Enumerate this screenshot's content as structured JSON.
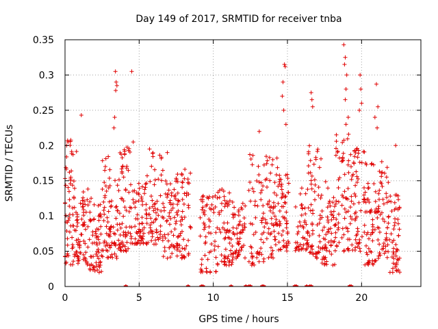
{
  "chart_data": {
    "type": "scatter",
    "title": "Day 149 of 2017, SRMTID for receiver tnba",
    "xlabel": "GPS time / hours",
    "ylabel": "SRMTID / TECUs",
    "xlim": [
      0,
      24
    ],
    "ylim": [
      0,
      0.35
    ],
    "x_ticks": [
      0,
      5,
      10,
      15,
      20
    ],
    "x_tick_labels": [
      "0",
      "5",
      "10",
      "15",
      "20"
    ],
    "y_ticks": [
      0,
      0.05,
      0.1,
      0.15,
      0.2,
      0.25,
      0.3,
      0.35
    ],
    "y_tick_labels": [
      "0",
      "0.05",
      "0.1",
      "0.15",
      "0.2",
      "0.25",
      "0.3",
      "0.35"
    ],
    "grid": true,
    "marker": "+",
    "color": "#e00000",
    "clusters": [
      {
        "x0": 0.0,
        "x1": 0.8,
        "lo": 0.03,
        "hi": 0.21,
        "n": 70
      },
      {
        "x0": 0.8,
        "x1": 1.6,
        "lo": 0.03,
        "hi": 0.14,
        "n": 60
      },
      {
        "x0": 1.6,
        "x1": 2.5,
        "lo": 0.02,
        "hi": 0.13,
        "n": 65
      },
      {
        "x0": 2.5,
        "x1": 3.5,
        "lo": 0.04,
        "hi": 0.19,
        "n": 70
      },
      {
        "x0": 3.5,
        "x1": 4.4,
        "lo": 0.05,
        "hi": 0.2,
        "n": 70
      },
      {
        "x0": 4.4,
        "x1": 5.5,
        "lo": 0.06,
        "hi": 0.15,
        "n": 70
      },
      {
        "x0": 5.5,
        "x1": 6.6,
        "lo": 0.06,
        "hi": 0.19,
        "n": 65
      },
      {
        "x0": 6.6,
        "x1": 7.6,
        "lo": 0.04,
        "hi": 0.16,
        "n": 65
      },
      {
        "x0": 7.6,
        "x1": 8.5,
        "lo": 0.04,
        "hi": 0.17,
        "n": 55
      },
      {
        "x0": 9.1,
        "x1": 10.2,
        "lo": 0.02,
        "hi": 0.13,
        "n": 60
      },
      {
        "x0": 10.2,
        "x1": 11.3,
        "lo": 0.03,
        "hi": 0.14,
        "n": 65
      },
      {
        "x0": 11.3,
        "x1": 12.2,
        "lo": 0.04,
        "hi": 0.12,
        "n": 55
      },
      {
        "x0": 12.4,
        "x1": 13.5,
        "lo": 0.03,
        "hi": 0.2,
        "n": 60
      },
      {
        "x0": 13.5,
        "x1": 14.4,
        "lo": 0.04,
        "hi": 0.2,
        "n": 60
      },
      {
        "x0": 14.4,
        "x1": 15.1,
        "lo": 0.05,
        "hi": 0.16,
        "n": 55
      },
      {
        "x0": 15.5,
        "x1": 16.4,
        "lo": 0.05,
        "hi": 0.14,
        "n": 50
      },
      {
        "x0": 16.4,
        "x1": 17.3,
        "lo": 0.04,
        "hi": 0.2,
        "n": 60
      },
      {
        "x0": 17.3,
        "x1": 18.2,
        "lo": 0.03,
        "hi": 0.15,
        "n": 60
      },
      {
        "x0": 18.2,
        "x1": 19.2,
        "lo": 0.05,
        "hi": 0.22,
        "n": 65
      },
      {
        "x0": 19.2,
        "x1": 20.2,
        "lo": 0.05,
        "hi": 0.2,
        "n": 65
      },
      {
        "x0": 20.2,
        "x1": 21.0,
        "lo": 0.03,
        "hi": 0.18,
        "n": 60
      },
      {
        "x0": 21.0,
        "x1": 21.8,
        "lo": 0.04,
        "hi": 0.18,
        "n": 55
      },
      {
        "x0": 21.8,
        "x1": 22.6,
        "lo": 0.02,
        "hi": 0.13,
        "n": 55
      }
    ],
    "outliers": [
      {
        "x": 0.2,
        "y": 0.205
      },
      {
        "x": 1.1,
        "y": 0.243
      },
      {
        "x": 3.4,
        "y": 0.305
      },
      {
        "x": 3.45,
        "y": 0.29
      },
      {
        "x": 3.5,
        "y": 0.285
      },
      {
        "x": 3.42,
        "y": 0.278
      },
      {
        "x": 3.35,
        "y": 0.24
      },
      {
        "x": 3.3,
        "y": 0.225
      },
      {
        "x": 4.5,
        "y": 0.305
      },
      {
        "x": 4.6,
        "y": 0.205
      },
      {
        "x": 5.7,
        "y": 0.195
      },
      {
        "x": 6.9,
        "y": 0.19
      },
      {
        "x": 13.1,
        "y": 0.22
      },
      {
        "x": 14.8,
        "y": 0.315
      },
      {
        "x": 14.85,
        "y": 0.312
      },
      {
        "x": 14.7,
        "y": 0.29
      },
      {
        "x": 14.65,
        "y": 0.27
      },
      {
        "x": 14.75,
        "y": 0.25
      },
      {
        "x": 14.9,
        "y": 0.23
      },
      {
        "x": 16.6,
        "y": 0.275
      },
      {
        "x": 16.65,
        "y": 0.265
      },
      {
        "x": 16.7,
        "y": 0.255
      },
      {
        "x": 18.8,
        "y": 0.343
      },
      {
        "x": 18.9,
        "y": 0.325
      },
      {
        "x": 18.85,
        "y": 0.315
      },
      {
        "x": 19.0,
        "y": 0.3
      },
      {
        "x": 18.95,
        "y": 0.28
      },
      {
        "x": 18.9,
        "y": 0.265
      },
      {
        "x": 19.1,
        "y": 0.24
      },
      {
        "x": 18.95,
        "y": 0.23
      },
      {
        "x": 19.9,
        "y": 0.3
      },
      {
        "x": 19.95,
        "y": 0.28
      },
      {
        "x": 20.0,
        "y": 0.26
      },
      {
        "x": 19.85,
        "y": 0.25
      },
      {
        "x": 21.0,
        "y": 0.287
      },
      {
        "x": 21.1,
        "y": 0.255
      },
      {
        "x": 20.9,
        "y": 0.24
      },
      {
        "x": 21.05,
        "y": 0.225
      },
      {
        "x": 22.3,
        "y": 0.2
      }
    ],
    "zero_points": [
      4.1,
      8.3,
      9.2,
      9.3,
      11.2,
      12.2,
      12.4,
      12.5,
      13.3,
      13.4,
      15.5,
      15.6,
      16.3,
      16.5,
      16.6,
      19.2,
      19.3
    ]
  }
}
